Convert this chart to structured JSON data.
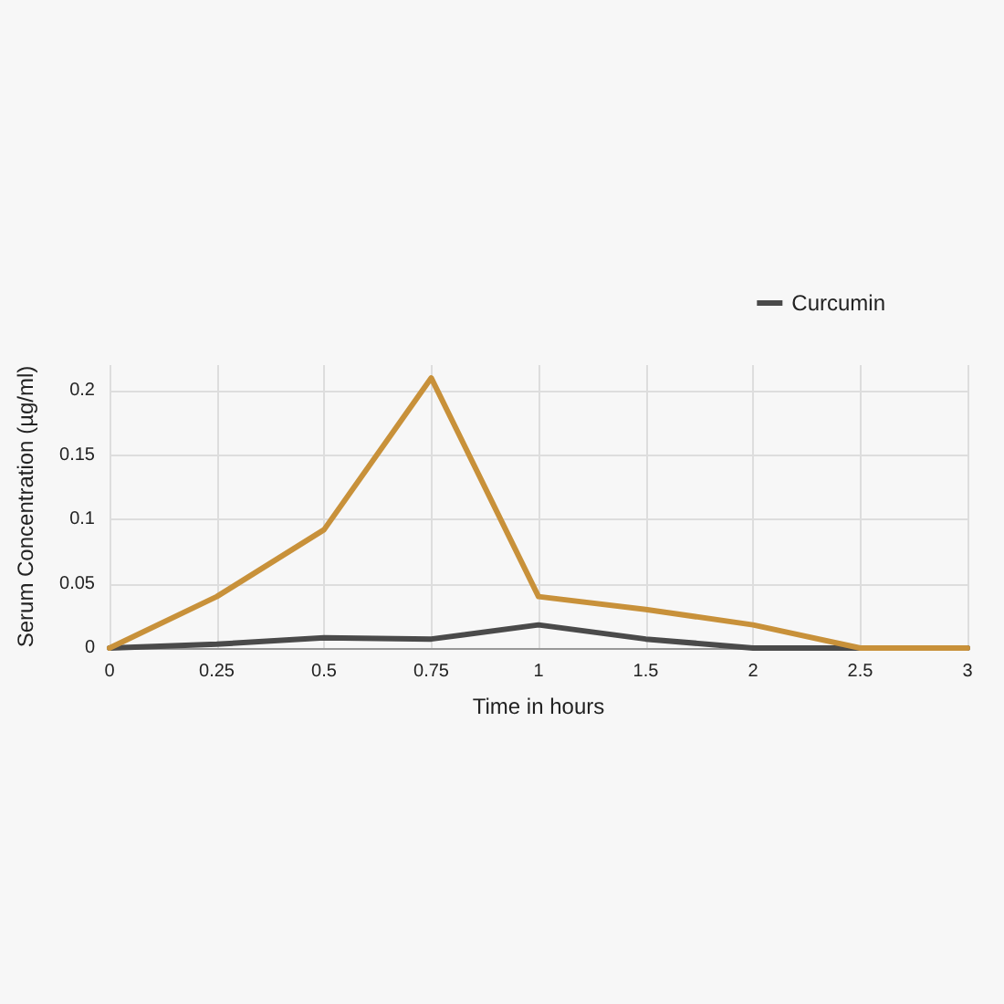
{
  "chart_data": {
    "type": "line",
    "xlabel": "Time in hours",
    "ylabel": "Serum Concentration (µg/ml)",
    "categories": [
      "0",
      "0.25",
      "0.5",
      "0.75",
      "1",
      "1.5",
      "2",
      "2.5",
      "3"
    ],
    "series": [
      {
        "name": "Curcumin",
        "color": "#4a4a4a",
        "values": [
          0,
          0.003,
          0.008,
          0.007,
          0.018,
          0.007,
          0,
          0,
          0
        ]
      },
      {
        "color": "#c8913a",
        "values": [
          0,
          0.04,
          0.092,
          0.21,
          0.04,
          0.03,
          0.018,
          0,
          0
        ]
      }
    ],
    "ylim": [
      0,
      0.22
    ],
    "yticks": [
      0,
      0.05,
      0.1,
      0.15,
      0.2
    ],
    "grid": true,
    "legend": "top right",
    "marker": "none",
    "line_style": "solid"
  }
}
